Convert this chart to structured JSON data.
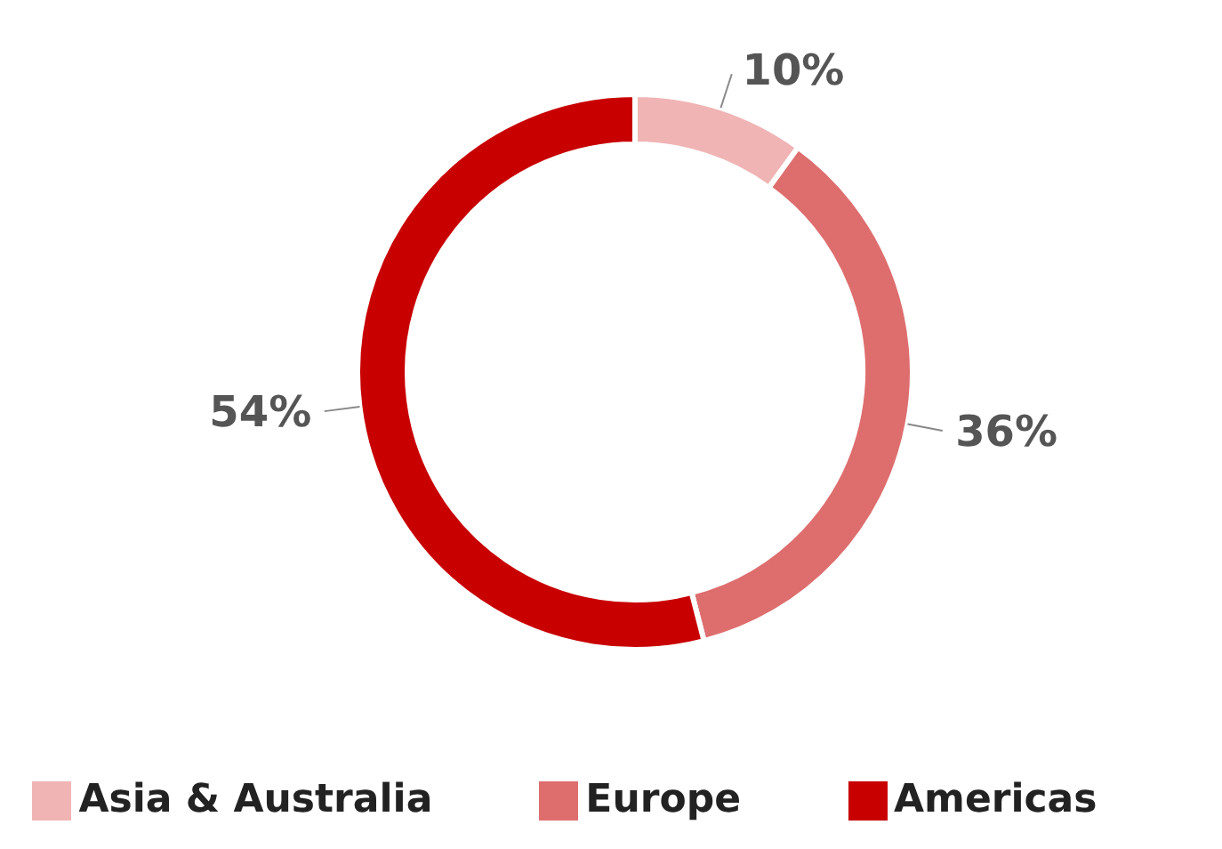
{
  "chart_data": {
    "type": "donut",
    "categories": [
      "Asia & Australia",
      "Europe",
      "Americas"
    ],
    "values": [
      10,
      36,
      54
    ],
    "colors": [
      "#f0b4b4",
      "#de6e6e",
      "#c80000"
    ],
    "value_labels": [
      "10%",
      "36%",
      "54%"
    ],
    "legend": "bottom"
  }
}
